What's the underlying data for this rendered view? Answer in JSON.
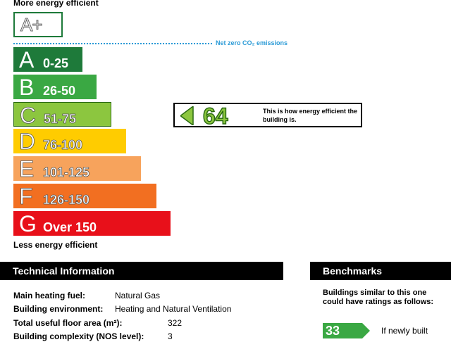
{
  "scale": {
    "top_label": "More energy efficient",
    "bottom_label": "Less energy efficient",
    "aplus_label": "A+",
    "net_zero_label": "Net zero CO₂ emissions",
    "bands": [
      {
        "letter": "A",
        "range": "0-25",
        "color": "#1e7a3a"
      },
      {
        "letter": "B",
        "range": "26-50",
        "color": "#3aa843"
      },
      {
        "letter": "C",
        "range": "51-75",
        "color": "#8cc63f"
      },
      {
        "letter": "D",
        "range": "76-100",
        "color": "#ffcc00"
      },
      {
        "letter": "E",
        "range": "101-125",
        "color": "#f7a35c"
      },
      {
        "letter": "F",
        "range": "126-150",
        "color": "#f26f21"
      },
      {
        "letter": "G",
        "range": "Over 150",
        "color": "#e8101a"
      }
    ]
  },
  "rating": {
    "value": "64",
    "text": "This is how energy efficient the building is.",
    "color": "#8cc63f"
  },
  "technical": {
    "heading": "Technical Information",
    "fields": [
      {
        "label": "Main heating fuel:",
        "value": "Natural Gas"
      },
      {
        "label": "Building environment:",
        "value": "Heating and Natural Ventilation"
      },
      {
        "label": "Total useful floor area (m²):",
        "value": "322"
      },
      {
        "label": "Building complexity (NOS level):",
        "value": "3"
      }
    ]
  },
  "benchmarks": {
    "heading": "Benchmarks",
    "text": "Buildings similar to this one could have ratings as follows:",
    "items": [
      {
        "value": "33",
        "label": "If newly built",
        "color": "#3aa843"
      }
    ]
  }
}
